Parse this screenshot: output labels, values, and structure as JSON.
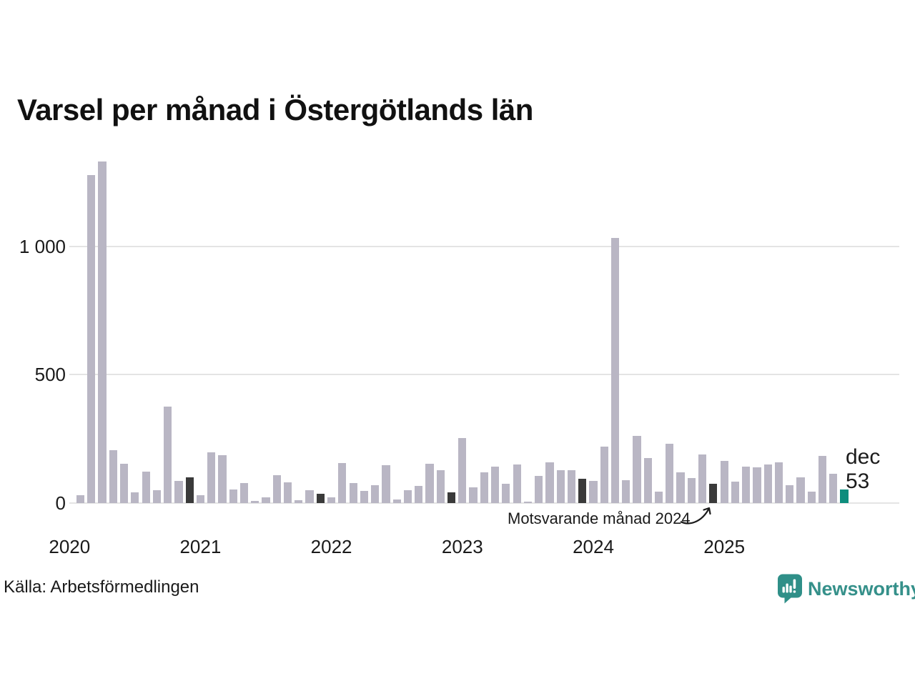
{
  "title": "Varsel per månad i Östergötlands län",
  "source": "Källa: Arbetsförmedlingen",
  "branding": {
    "name": "Newsworthy",
    "logo_icon": "speech-bubble-bar-chart-icon",
    "color": "#35908a",
    "icon_fill": "#2f8f88"
  },
  "annotation": {
    "text": "Motsvarande månad 2024",
    "target_month": "2024-12"
  },
  "current_point": {
    "month_label": "dec",
    "value_label": "53"
  },
  "colors": {
    "bar": "#b9b6c4",
    "december": "#3a3a3a",
    "current": "#0e8d7d",
    "gridline": "#e4e4e4",
    "text": "#1a1a1a"
  },
  "chart_data": {
    "type": "bar",
    "title": "Varsel per månad i Östergötlands län",
    "xlabel": "",
    "ylabel": "",
    "ylim": [
      0,
      1400
    ],
    "grid": true,
    "y_ticks": [
      {
        "value": 0,
        "label": "0"
      },
      {
        "value": 500,
        "label": "500"
      },
      {
        "value": 1000,
        "label": "1 000"
      }
    ],
    "year_labels": [
      "2020",
      "2021",
      "2022",
      "2023",
      "2024",
      "2025"
    ],
    "points": [
      {
        "month": "2020-01",
        "value": null,
        "role": "empty"
      },
      {
        "month": "2020-02",
        "value": 32,
        "role": "normal"
      },
      {
        "month": "2020-03",
        "value": 1278,
        "role": "normal"
      },
      {
        "month": "2020-04",
        "value": 1330,
        "role": "normal"
      },
      {
        "month": "2020-05",
        "value": 207,
        "role": "normal"
      },
      {
        "month": "2020-06",
        "value": 154,
        "role": "normal"
      },
      {
        "month": "2020-07",
        "value": 43,
        "role": "normal"
      },
      {
        "month": "2020-08",
        "value": 123,
        "role": "normal"
      },
      {
        "month": "2020-09",
        "value": 51,
        "role": "normal"
      },
      {
        "month": "2020-10",
        "value": 376,
        "role": "normal"
      },
      {
        "month": "2020-11",
        "value": 87,
        "role": "normal"
      },
      {
        "month": "2020-12",
        "value": 101,
        "role": "december"
      },
      {
        "month": "2021-01",
        "value": 31,
        "role": "normal"
      },
      {
        "month": "2021-02",
        "value": 199,
        "role": "normal"
      },
      {
        "month": "2021-03",
        "value": 186,
        "role": "normal"
      },
      {
        "month": "2021-04",
        "value": 52,
        "role": "normal"
      },
      {
        "month": "2021-05",
        "value": 77,
        "role": "normal"
      },
      {
        "month": "2021-06",
        "value": 8,
        "role": "normal"
      },
      {
        "month": "2021-07",
        "value": 22,
        "role": "normal"
      },
      {
        "month": "2021-08",
        "value": 110,
        "role": "normal"
      },
      {
        "month": "2021-09",
        "value": 80,
        "role": "normal"
      },
      {
        "month": "2021-10",
        "value": 11,
        "role": "normal"
      },
      {
        "month": "2021-11",
        "value": 50,
        "role": "normal"
      },
      {
        "month": "2021-12",
        "value": 36,
        "role": "december"
      },
      {
        "month": "2022-01",
        "value": 23,
        "role": "normal"
      },
      {
        "month": "2022-02",
        "value": 156,
        "role": "normal"
      },
      {
        "month": "2022-03",
        "value": 77,
        "role": "normal"
      },
      {
        "month": "2022-04",
        "value": 48,
        "role": "normal"
      },
      {
        "month": "2022-05",
        "value": 70,
        "role": "normal"
      },
      {
        "month": "2022-06",
        "value": 147,
        "role": "normal"
      },
      {
        "month": "2022-07",
        "value": 14,
        "role": "normal"
      },
      {
        "month": "2022-08",
        "value": 50,
        "role": "normal"
      },
      {
        "month": "2022-09",
        "value": 68,
        "role": "normal"
      },
      {
        "month": "2022-10",
        "value": 152,
        "role": "normal"
      },
      {
        "month": "2022-11",
        "value": 128,
        "role": "normal"
      },
      {
        "month": "2022-12",
        "value": 43,
        "role": "december"
      },
      {
        "month": "2023-01",
        "value": 254,
        "role": "normal"
      },
      {
        "month": "2023-02",
        "value": 62,
        "role": "normal"
      },
      {
        "month": "2023-03",
        "value": 120,
        "role": "normal"
      },
      {
        "month": "2023-04",
        "value": 143,
        "role": "normal"
      },
      {
        "month": "2023-05",
        "value": 74,
        "role": "normal"
      },
      {
        "month": "2023-06",
        "value": 149,
        "role": "normal"
      },
      {
        "month": "2023-07",
        "value": 7,
        "role": "normal"
      },
      {
        "month": "2023-08",
        "value": 106,
        "role": "normal"
      },
      {
        "month": "2023-09",
        "value": 158,
        "role": "normal"
      },
      {
        "month": "2023-10",
        "value": 127,
        "role": "normal"
      },
      {
        "month": "2023-11",
        "value": 127,
        "role": "normal"
      },
      {
        "month": "2023-12",
        "value": 95,
        "role": "december"
      },
      {
        "month": "2024-01",
        "value": 86,
        "role": "normal"
      },
      {
        "month": "2024-02",
        "value": 221,
        "role": "normal"
      },
      {
        "month": "2024-03",
        "value": 1032,
        "role": "normal"
      },
      {
        "month": "2024-04",
        "value": 88,
        "role": "normal"
      },
      {
        "month": "2024-05",
        "value": 262,
        "role": "normal"
      },
      {
        "month": "2024-06",
        "value": 175,
        "role": "normal"
      },
      {
        "month": "2024-07",
        "value": 46,
        "role": "normal"
      },
      {
        "month": "2024-08",
        "value": 232,
        "role": "normal"
      },
      {
        "month": "2024-09",
        "value": 121,
        "role": "normal"
      },
      {
        "month": "2024-10",
        "value": 97,
        "role": "normal"
      },
      {
        "month": "2024-11",
        "value": 190,
        "role": "normal"
      },
      {
        "month": "2024-12",
        "value": 75,
        "role": "december"
      },
      {
        "month": "2025-01",
        "value": 165,
        "role": "normal"
      },
      {
        "month": "2025-02",
        "value": 83,
        "role": "normal"
      },
      {
        "month": "2025-03",
        "value": 141,
        "role": "normal"
      },
      {
        "month": "2025-04",
        "value": 139,
        "role": "normal"
      },
      {
        "month": "2025-05",
        "value": 151,
        "role": "normal"
      },
      {
        "month": "2025-06",
        "value": 159,
        "role": "normal"
      },
      {
        "month": "2025-07",
        "value": 71,
        "role": "normal"
      },
      {
        "month": "2025-08",
        "value": 100,
        "role": "normal"
      },
      {
        "month": "2025-09",
        "value": 46,
        "role": "normal"
      },
      {
        "month": "2025-10",
        "value": 185,
        "role": "normal"
      },
      {
        "month": "2025-11",
        "value": 113,
        "role": "normal"
      },
      {
        "month": "2025-12",
        "value": 53,
        "role": "current"
      }
    ]
  }
}
